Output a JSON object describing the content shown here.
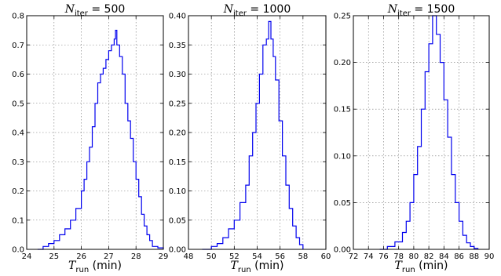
{
  "chart_data": [
    {
      "type": "histogram",
      "title_sym": "N",
      "title_sub": "iter",
      "title_val": "= 500",
      "xlabel_sym": "T",
      "xlabel_sub": "run",
      "xlabel_unit": " (min)",
      "xlim": [
        24,
        29
      ],
      "ylim": [
        0,
        0.8
      ],
      "xticks": [
        "24",
        "25",
        "26",
        "27",
        "28",
        "29"
      ],
      "yticks": [
        "0.0",
        "0.1",
        "0.2",
        "0.3",
        "0.4",
        "0.5",
        "0.6",
        "0.7",
        "0.8"
      ],
      "grid": true,
      "color": "#0000ee",
      "x": [
        24.4,
        24.6,
        24.8,
        25.0,
        25.2,
        25.4,
        25.6,
        25.8,
        26.0,
        26.1,
        26.2,
        26.3,
        26.4,
        26.5,
        26.6,
        26.7,
        26.8,
        26.9,
        27.0,
        27.1,
        27.2,
        27.25,
        27.3,
        27.4,
        27.5,
        27.6,
        27.7,
        27.8,
        27.9,
        28.0,
        28.1,
        28.2,
        28.3,
        28.4,
        28.5,
        28.6,
        28.8,
        29.0
      ],
      "y": [
        0.0,
        0.01,
        0.02,
        0.03,
        0.05,
        0.07,
        0.1,
        0.14,
        0.2,
        0.24,
        0.3,
        0.35,
        0.42,
        0.5,
        0.57,
        0.6,
        0.62,
        0.65,
        0.68,
        0.7,
        0.72,
        0.75,
        0.7,
        0.66,
        0.6,
        0.5,
        0.44,
        0.38,
        0.3,
        0.24,
        0.18,
        0.12,
        0.08,
        0.05,
        0.03,
        0.01,
        0.005,
        0.0
      ]
    },
    {
      "type": "histogram",
      "title_sym": "N",
      "title_sub": "iter",
      "title_val": "= 1000",
      "xlabel_sym": "T",
      "xlabel_sub": "run",
      "xlabel_unit": " (min)",
      "xlim": [
        48,
        60
      ],
      "ylim": [
        0,
        0.4
      ],
      "xticks": [
        "48",
        "50",
        "52",
        "54",
        "56",
        "58",
        "60"
      ],
      "yticks": [
        "0.00",
        "0.05",
        "0.10",
        "0.15",
        "0.20",
        "0.25",
        "0.30",
        "0.35",
        "0.40"
      ],
      "grid": true,
      "color": "#0000ee",
      "x": [
        49.2,
        50.0,
        50.5,
        51.0,
        51.5,
        52.0,
        52.5,
        53.0,
        53.3,
        53.6,
        53.9,
        54.2,
        54.5,
        54.8,
        55.0,
        55.2,
        55.4,
        55.6,
        55.9,
        56.2,
        56.5,
        56.8,
        57.1,
        57.4,
        57.7,
        58.0
      ],
      "y": [
        0.0,
        0.005,
        0.01,
        0.02,
        0.035,
        0.05,
        0.08,
        0.11,
        0.16,
        0.2,
        0.25,
        0.3,
        0.35,
        0.36,
        0.39,
        0.36,
        0.33,
        0.29,
        0.22,
        0.16,
        0.11,
        0.07,
        0.04,
        0.02,
        0.008,
        0.0
      ]
    },
    {
      "type": "histogram",
      "title_sym": "N",
      "title_sub": "iter",
      "title_val": "= 1500",
      "xlabel_sym": "T",
      "xlabel_sub": "run",
      "xlabel_unit": " (min)",
      "xlim": [
        72,
        90
      ],
      "ylim": [
        0,
        0.25
      ],
      "xticks": [
        "72",
        "74",
        "76",
        "78",
        "80",
        "82",
        "84",
        "86",
        "88",
        "90"
      ],
      "yticks": [
        "0.00",
        "0.05",
        "0.10",
        "0.15",
        "0.20",
        "0.25"
      ],
      "grid": true,
      "color": "#0000ee",
      "x": [
        75.5,
        76.5,
        77.5,
        78.5,
        79.0,
        79.5,
        80.0,
        80.5,
        81.0,
        81.5,
        82.0,
        82.5,
        83.0,
        83.5,
        84.0,
        84.5,
        85.0,
        85.5,
        86.0,
        86.5,
        87.0,
        87.5,
        88.0,
        88.5
      ],
      "y": [
        0.0,
        0.003,
        0.008,
        0.018,
        0.03,
        0.05,
        0.08,
        0.11,
        0.15,
        0.19,
        0.22,
        0.25,
        0.23,
        0.2,
        0.16,
        0.12,
        0.08,
        0.05,
        0.03,
        0.015,
        0.007,
        0.003,
        0.001,
        0.0
      ]
    }
  ]
}
